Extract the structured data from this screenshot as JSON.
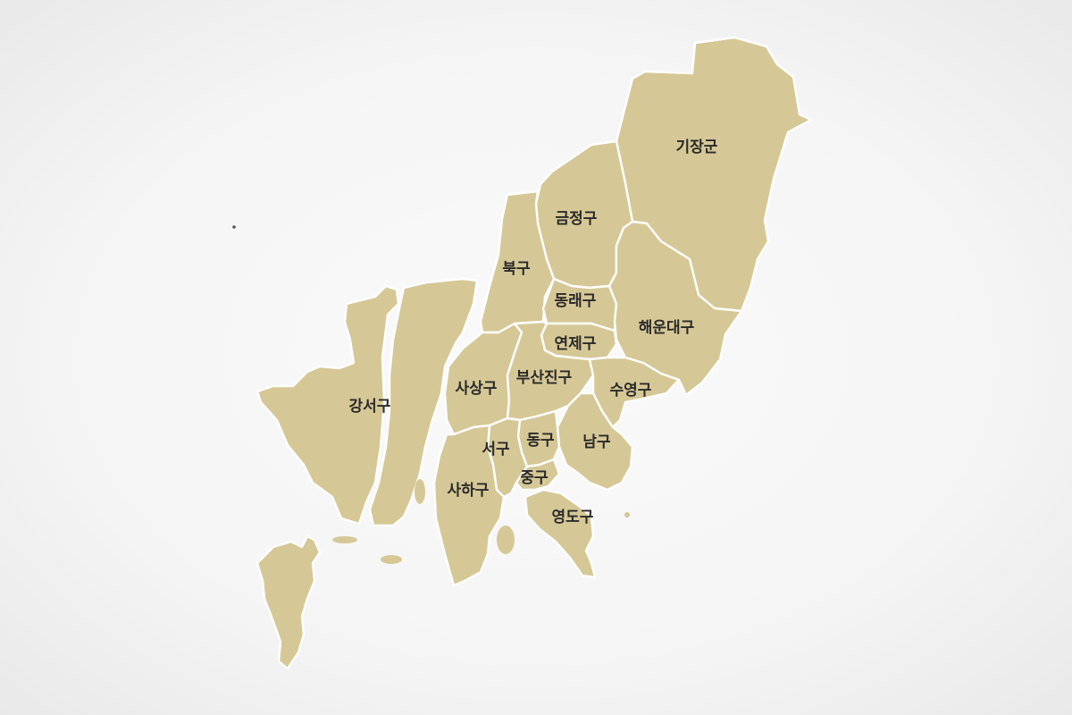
{
  "map": {
    "fill_color": "#d6c896",
    "border_color": "#ffffff",
    "background_color": "#f5f5f5",
    "districts": {
      "gijang": "기장군",
      "geumjeong": "금정구",
      "buk": "북구",
      "dongnae": "동래구",
      "haeundae": "해운대구",
      "yeonje": "연제구",
      "sasang": "사상구",
      "busanjin": "부산진구",
      "suyeong": "수영구",
      "gangseo": "강서구",
      "dong": "동구",
      "seo": "서구",
      "nam": "남구",
      "saha": "사하구",
      "jung": "중구",
      "yeongdo": "영도구"
    }
  }
}
